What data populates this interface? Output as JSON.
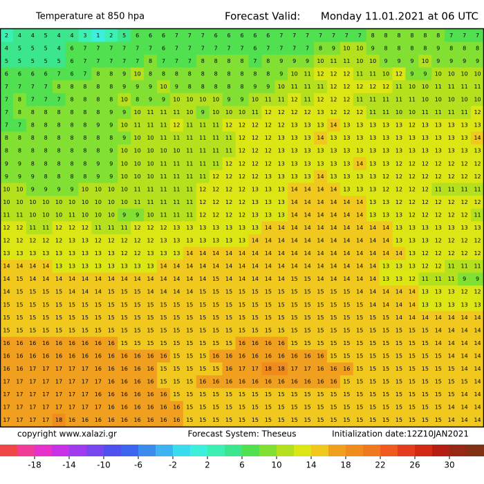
{
  "header": {
    "title": "Temperature at 850 hpa",
    "valid_label": "Forecast Valid:",
    "valid_time": "Monday 11.01.2021 at 06 UTC"
  },
  "footer": {
    "copyright": "copyright www.xalazi.gr",
    "system": "Forecast System: Theseus",
    "init": "Initialization date:12Z10JAN2021"
  },
  "colorbar": {
    "lim": [
      -22,
      34
    ],
    "ticks": [
      -18,
      -14,
      -10,
      -6,
      -2,
      2,
      6,
      10,
      14,
      18,
      22,
      26,
      30
    ],
    "colors": [
      "#f04646",
      "#f03c96",
      "#e632c8",
      "#c832e6",
      "#a03cf0",
      "#7846f0",
      "#5050f0",
      "#3c64f0",
      "#3c8cf0",
      "#3cb4f0",
      "#3cdcf0",
      "#3cf0dc",
      "#3cf0b4",
      "#3ce68c",
      "#50e050",
      "#82e032",
      "#b4e01e",
      "#dce614",
      "#f0c81e",
      "#f0a01e",
      "#f08c1e",
      "#f0781e",
      "#f05a1e",
      "#e63c1e",
      "#d22814",
      "#b41e14",
      "#962814",
      "#823214"
    ]
  },
  "grid": [
    [
      2,
      4,
      4,
      5,
      4,
      4,
      3,
      1,
      2,
      5,
      6,
      6,
      6,
      7,
      7,
      7,
      6,
      6,
      6,
      6,
      6,
      7,
      7,
      7,
      7,
      7,
      7,
      7,
      8,
      8,
      8,
      8,
      8,
      8,
      7,
      7,
      7
    ],
    [
      4,
      5,
      5,
      5,
      4,
      6,
      7,
      7,
      7,
      7,
      7,
      7,
      6,
      7,
      7,
      7,
      7,
      7,
      7,
      6,
      7,
      7,
      7,
      7,
      8,
      9,
      10,
      10,
      9,
      8,
      8,
      8,
      8,
      9,
      8,
      8,
      8
    ],
    [
      5,
      5,
      5,
      5,
      5,
      6,
      7,
      7,
      7,
      7,
      7,
      8,
      7,
      7,
      7,
      8,
      8,
      8,
      8,
      7,
      8,
      9,
      9,
      9,
      10,
      11,
      11,
      10,
      10,
      9,
      9,
      9,
      10,
      9,
      9,
      9,
      9
    ],
    [
      6,
      6,
      6,
      6,
      7,
      6,
      7,
      8,
      8,
      9,
      10,
      8,
      8,
      8,
      8,
      8,
      8,
      8,
      8,
      8,
      8,
      9,
      10,
      11,
      12,
      12,
      12,
      11,
      11,
      10,
      12,
      9,
      9,
      10,
      10,
      10,
      10
    ],
    [
      7,
      7,
      7,
      7,
      8,
      8,
      8,
      8,
      8,
      9,
      9,
      9,
      10,
      9,
      8,
      8,
      8,
      8,
      8,
      9,
      9,
      10,
      11,
      11,
      11,
      12,
      12,
      12,
      12,
      12,
      11,
      10,
      10,
      11,
      11,
      11,
      11
    ],
    [
      7,
      8,
      7,
      7,
      7,
      8,
      8,
      8,
      8,
      10,
      8,
      9,
      9,
      10,
      10,
      10,
      10,
      9,
      9,
      10,
      11,
      11,
      12,
      11,
      12,
      12,
      12,
      11,
      11,
      11,
      11,
      11,
      10,
      10,
      10,
      10,
      10
    ],
    [
      7,
      8,
      8,
      8,
      8,
      8,
      8,
      8,
      9,
      9,
      10,
      11,
      11,
      11,
      10,
      9,
      10,
      10,
      10,
      11,
      12,
      12,
      12,
      12,
      13,
      12,
      12,
      12,
      11,
      11,
      10,
      10,
      11,
      11,
      11,
      11,
      12
    ],
    [
      7,
      7,
      8,
      8,
      8,
      8,
      8,
      9,
      9,
      10,
      11,
      11,
      11,
      12,
      11,
      11,
      11,
      12,
      12,
      12,
      12,
      12,
      13,
      13,
      13,
      14,
      13,
      13,
      13,
      13,
      13,
      12,
      13,
      13,
      13,
      13,
      13
    ],
    [
      8,
      8,
      8,
      8,
      8,
      8,
      8,
      8,
      8,
      9,
      10,
      10,
      11,
      11,
      11,
      11,
      11,
      11,
      12,
      12,
      12,
      13,
      13,
      13,
      14,
      13,
      13,
      13,
      13,
      13,
      13,
      13,
      13,
      13,
      13,
      13,
      14
    ],
    [
      8,
      8,
      8,
      8,
      8,
      8,
      8,
      8,
      9,
      10,
      10,
      10,
      10,
      10,
      11,
      11,
      11,
      11,
      12,
      12,
      12,
      13,
      13,
      13,
      13,
      13,
      13,
      13,
      13,
      13,
      13,
      13,
      13,
      13,
      13,
      13,
      13
    ],
    [
      9,
      9,
      8,
      8,
      8,
      8,
      8,
      9,
      9,
      10,
      10,
      10,
      11,
      11,
      11,
      11,
      11,
      12,
      12,
      12,
      12,
      13,
      13,
      13,
      13,
      13,
      13,
      14,
      13,
      13,
      12,
      12,
      12,
      12,
      12,
      12,
      12
    ],
    [
      9,
      9,
      9,
      8,
      8,
      8,
      8,
      9,
      9,
      10,
      10,
      10,
      11,
      11,
      11,
      11,
      12,
      12,
      12,
      12,
      13,
      13,
      13,
      13,
      14,
      13,
      13,
      13,
      13,
      12,
      12,
      12,
      12,
      12,
      12,
      12,
      12
    ],
    [
      10,
      10,
      9,
      9,
      9,
      9,
      10,
      10,
      10,
      10,
      11,
      11,
      11,
      11,
      11,
      12,
      12,
      12,
      12,
      13,
      13,
      13,
      14,
      14,
      14,
      14,
      13,
      13,
      13,
      12,
      12,
      12,
      12,
      11,
      11,
      11,
      11
    ],
    [
      10,
      10,
      10,
      10,
      10,
      10,
      10,
      10,
      10,
      10,
      11,
      11,
      11,
      11,
      11,
      12,
      12,
      12,
      12,
      13,
      13,
      13,
      14,
      14,
      14,
      14,
      14,
      14,
      13,
      13,
      12,
      12,
      12,
      12,
      12,
      12,
      12
    ],
    [
      11,
      11,
      10,
      10,
      10,
      11,
      10,
      10,
      10,
      9,
      9,
      10,
      11,
      11,
      11,
      12,
      12,
      12,
      12,
      13,
      13,
      13,
      14,
      14,
      14,
      14,
      14,
      14,
      13,
      13,
      13,
      12,
      12,
      12,
      12,
      12,
      11
    ],
    [
      12,
      12,
      11,
      11,
      12,
      12,
      12,
      11,
      11,
      11,
      12,
      12,
      12,
      13,
      13,
      13,
      13,
      13,
      13,
      13,
      14,
      14,
      14,
      14,
      14,
      14,
      14,
      14,
      14,
      14,
      13,
      13,
      13,
      13,
      13,
      13,
      13
    ],
    [
      12,
      12,
      12,
      12,
      12,
      13,
      13,
      12,
      12,
      12,
      12,
      12,
      13,
      13,
      13,
      13,
      13,
      13,
      13,
      14,
      14,
      14,
      14,
      14,
      14,
      14,
      14,
      14,
      14,
      14,
      13,
      13,
      13,
      12,
      12,
      12,
      12
    ],
    [
      13,
      13,
      13,
      13,
      13,
      13,
      13,
      13,
      13,
      12,
      12,
      13,
      13,
      13,
      14,
      14,
      14,
      14,
      14,
      14,
      14,
      14,
      14,
      14,
      14,
      14,
      14,
      14,
      14,
      14,
      14,
      13,
      12,
      12,
      12,
      12,
      12
    ],
    [
      14,
      14,
      14,
      14,
      13,
      13,
      13,
      13,
      13,
      13,
      13,
      13,
      14,
      14,
      14,
      14,
      14,
      14,
      14,
      14,
      14,
      14,
      14,
      14,
      14,
      14,
      14,
      14,
      14,
      13,
      13,
      13,
      12,
      12,
      11,
      11,
      11
    ],
    [
      14,
      15,
      14,
      14,
      14,
      14,
      14,
      14,
      14,
      14,
      14,
      14,
      14,
      14,
      14,
      14,
      15,
      14,
      14,
      14,
      14,
      14,
      15,
      15,
      14,
      14,
      14,
      14,
      14,
      13,
      13,
      12,
      11,
      11,
      11,
      9,
      9
    ],
    [
      14,
      15,
      15,
      15,
      15,
      14,
      14,
      14,
      15,
      15,
      15,
      14,
      14,
      14,
      14,
      15,
      15,
      15,
      15,
      15,
      15,
      15,
      15,
      15,
      15,
      15,
      15,
      14,
      14,
      14,
      14,
      14,
      13,
      13,
      13,
      12,
      12
    ],
    [
      15,
      15,
      15,
      15,
      15,
      15,
      15,
      15,
      15,
      15,
      15,
      15,
      15,
      15,
      15,
      15,
      15,
      15,
      15,
      15,
      15,
      15,
      15,
      15,
      15,
      15,
      15,
      15,
      14,
      14,
      14,
      14,
      13,
      13,
      13,
      13,
      13
    ],
    [
      15,
      15,
      15,
      15,
      15,
      15,
      15,
      15,
      15,
      15,
      15,
      15,
      15,
      15,
      15,
      15,
      15,
      15,
      15,
      15,
      15,
      15,
      15,
      15,
      15,
      15,
      15,
      15,
      15,
      15,
      14,
      14,
      14,
      14,
      14,
      14,
      14
    ],
    [
      15,
      15,
      15,
      15,
      15,
      15,
      15,
      15,
      15,
      15,
      15,
      15,
      15,
      15,
      15,
      15,
      15,
      15,
      15,
      15,
      15,
      15,
      15,
      15,
      15,
      15,
      15,
      15,
      15,
      15,
      15,
      15,
      15,
      14,
      14,
      14,
      14
    ],
    [
      16,
      16,
      16,
      16,
      16,
      16,
      16,
      16,
      16,
      15,
      15,
      15,
      15,
      15,
      15,
      15,
      15,
      15,
      16,
      16,
      16,
      16,
      15,
      15,
      15,
      15,
      15,
      15,
      15,
      15,
      15,
      15,
      15,
      14,
      14,
      14,
      14
    ],
    [
      16,
      16,
      16,
      16,
      16,
      16,
      16,
      16,
      16,
      16,
      16,
      16,
      16,
      15,
      15,
      15,
      16,
      16,
      16,
      16,
      16,
      16,
      16,
      16,
      16,
      15,
      15,
      15,
      15,
      15,
      15,
      15,
      15,
      15,
      14,
      14,
      14
    ],
    [
      16,
      16,
      17,
      17,
      17,
      17,
      17,
      16,
      16,
      16,
      16,
      16,
      15,
      15,
      15,
      15,
      15,
      16,
      17,
      17,
      18,
      18,
      17,
      17,
      16,
      16,
      16,
      15,
      15,
      15,
      15,
      15,
      15,
      15,
      15,
      14,
      14
    ],
    [
      17,
      17,
      17,
      17,
      17,
      17,
      17,
      17,
      16,
      16,
      16,
      16,
      15,
      15,
      15,
      16,
      16,
      16,
      16,
      16,
      16,
      16,
      16,
      16,
      16,
      16,
      15,
      15,
      15,
      15,
      15,
      15,
      15,
      15,
      15,
      15,
      14
    ],
    [
      17,
      17,
      17,
      17,
      17,
      17,
      17,
      16,
      16,
      16,
      16,
      16,
      16,
      15,
      15,
      15,
      15,
      15,
      15,
      15,
      15,
      15,
      15,
      15,
      15,
      15,
      15,
      15,
      15,
      15,
      15,
      15,
      15,
      15,
      15,
      14,
      14
    ],
    [
      17,
      17,
      17,
      17,
      17,
      17,
      17,
      17,
      16,
      16,
      16,
      16,
      16,
      16,
      15,
      15,
      15,
      15,
      15,
      15,
      15,
      15,
      15,
      15,
      15,
      15,
      15,
      15,
      15,
      15,
      15,
      15,
      15,
      15,
      14,
      14,
      14
    ],
    [
      17,
      17,
      17,
      17,
      18,
      16,
      16,
      16,
      16,
      16,
      16,
      16,
      16,
      16,
      15,
      15,
      15,
      15,
      15,
      15,
      15,
      15,
      15,
      15,
      15,
      15,
      15,
      15,
      15,
      15,
      15,
      15,
      15,
      15,
      14,
      14,
      14
    ]
  ]
}
